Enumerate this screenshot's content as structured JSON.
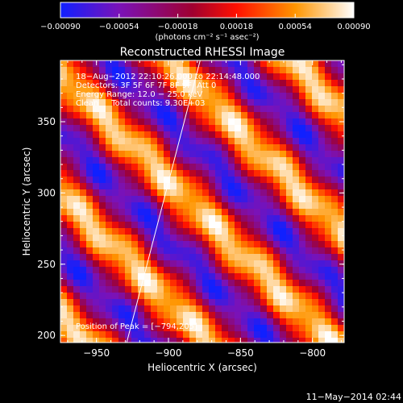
{
  "chart_data": {
    "type": "heatmap",
    "title": "Reconstructed RHESSI Image",
    "xlabel": "Heliocentric X (arcsec)",
    "ylabel": "Heliocentric Y (arcsec)",
    "xlim": [
      -975,
      -778
    ],
    "ylim": [
      195,
      393
    ],
    "x_ticks": [
      -950,
      -900,
      -850,
      -800
    ],
    "y_ticks": [
      200,
      250,
      300,
      350
    ],
    "x_tick_labels": [
      "−950",
      "−900",
      "−850",
      "−800"
    ],
    "y_tick_labels": [
      "200",
      "250",
      "300",
      "350"
    ],
    "colorbar": {
      "range": [
        -0.0009,
        0.0009
      ],
      "ticks": [
        -0.0009,
        -0.00054,
        -0.00018,
        0.00018,
        0.00054,
        0.0009
      ],
      "tick_labels": [
        "−0.00090",
        "−0.00054",
        "−0.00018",
        "0.00018",
        "0.00054",
        "0.00090"
      ],
      "unit": "(photons cm⁻² s⁻¹ asec⁻²)"
    },
    "annotations": [
      "18−Aug−2012 22:10:26.000 to 22:14:48.000",
      "Detectors: 3F 5F 6F 7F 8F 9F, Att 0",
      "Energy Range: 12.0 − 25.0 keV",
      "Clean     Total counts: 9.30E+03"
    ],
    "peak_label": "Position of Peak = [−794,205]",
    "limb_line": [
      [
        -929,
        195
      ],
      [
        -878,
        393
      ]
    ],
    "stripe_period_arcsec": 60
  },
  "footer": {
    "date": "11−May−2014 02:44"
  }
}
